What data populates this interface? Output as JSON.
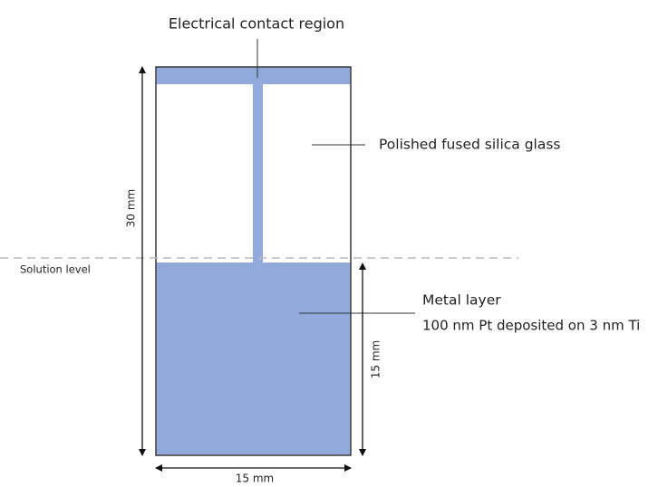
{
  "labels": {
    "contact": "Electrical contact region",
    "glass": "Polished fused silica glass",
    "metal_title": "Metal layer",
    "metal_detail": "100 nm Pt deposited on 3 nm Ti",
    "solution": "Solution level",
    "height_total": "30 mm",
    "height_metal": "15 mm",
    "width": "15 mm"
  }
}
